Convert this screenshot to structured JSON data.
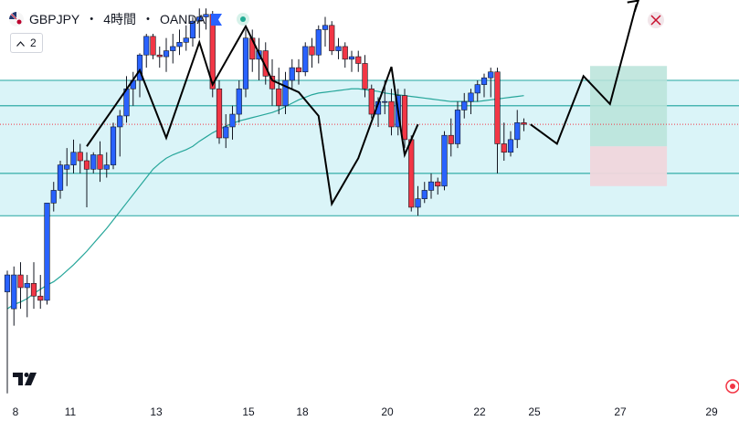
{
  "header": {
    "symbol": "GBPJPY",
    "separator1": "・",
    "timeframe": "4時間",
    "separator2": "・",
    "broker": "OANDA"
  },
  "indicator_toggle": {
    "label": "2"
  },
  "colors": {
    "up": "#2962ff",
    "down": "#f23645",
    "ma": "#26a69a",
    "zone_fill": "#cdf0f5",
    "zone_line": "#22a6a0",
    "target_fill": "#b9e3d9",
    "stop_fill": "#f0d6dc",
    "path": "#000000"
  },
  "icons": {
    "flag": "uk-japan-flag-icon",
    "bookmark": "bookmark-icon",
    "status": "market-status-icon",
    "logo": "tradingview-logo-icon",
    "alert": "alert-icon"
  },
  "x_axis": {
    "labels": [
      "8",
      "11",
      "13",
      "15",
      "18",
      "20",
      "22",
      "25",
      "27",
      "29"
    ]
  },
  "chart_data": {
    "type": "candlestick",
    "symbol": "GBPJPY",
    "timeframe": "4時間",
    "broker": "OANDA",
    "candles": [
      {
        "o": 60,
        "h": 85,
        "l": -60,
        "c": 80
      },
      {
        "o": 40,
        "h": 90,
        "l": 20,
        "c": 80
      },
      {
        "o": 80,
        "h": 95,
        "l": 40,
        "c": 65
      },
      {
        "o": 65,
        "h": 80,
        "l": 30,
        "c": 70
      },
      {
        "o": 70,
        "h": 95,
        "l": 40,
        "c": 55
      },
      {
        "o": 55,
        "h": 80,
        "l": 40,
        "c": 50
      },
      {
        "o": 50,
        "h": 165,
        "l": 45,
        "c": 165
      },
      {
        "o": 165,
        "h": 190,
        "l": 155,
        "c": 180
      },
      {
        "o": 180,
        "h": 215,
        "l": 170,
        "c": 210
      },
      {
        "o": 205,
        "h": 230,
        "l": 185,
        "c": 210
      },
      {
        "o": 210,
        "h": 240,
        "l": 200,
        "c": 225
      },
      {
        "o": 225,
        "h": 235,
        "l": 200,
        "c": 215
      },
      {
        "o": 215,
        "h": 225,
        "l": 160,
        "c": 205
      },
      {
        "o": 205,
        "h": 225,
        "l": 200,
        "c": 222
      },
      {
        "o": 222,
        "h": 238,
        "l": 190,
        "c": 205
      },
      {
        "o": 205,
        "h": 225,
        "l": 195,
        "c": 210
      },
      {
        "o": 210,
        "h": 260,
        "l": 205,
        "c": 255
      },
      {
        "o": 255,
        "h": 275,
        "l": 220,
        "c": 268
      },
      {
        "o": 268,
        "h": 315,
        "l": 260,
        "c": 300
      },
      {
        "o": 300,
        "h": 320,
        "l": 280,
        "c": 310
      },
      {
        "o": 310,
        "h": 342,
        "l": 290,
        "c": 340
      },
      {
        "o": 340,
        "h": 365,
        "l": 325,
        "c": 362
      },
      {
        "o": 362,
        "h": 365,
        "l": 335,
        "c": 340
      },
      {
        "o": 340,
        "h": 350,
        "l": 325,
        "c": 338
      },
      {
        "o": 338,
        "h": 360,
        "l": 320,
        "c": 345
      },
      {
        "o": 345,
        "h": 365,
        "l": 330,
        "c": 350
      },
      {
        "o": 350,
        "h": 370,
        "l": 340,
        "c": 355
      },
      {
        "o": 355,
        "h": 375,
        "l": 345,
        "c": 360
      },
      {
        "o": 360,
        "h": 385,
        "l": 350,
        "c": 380
      },
      {
        "o": 380,
        "h": 395,
        "l": 360,
        "c": 385
      },
      {
        "o": 385,
        "h": 395,
        "l": 370,
        "c": 388
      },
      {
        "o": 388,
        "h": 392,
        "l": 290,
        "c": 300
      },
      {
        "o": 300,
        "h": 310,
        "l": 235,
        "c": 242
      },
      {
        "o": 242,
        "h": 270,
        "l": 230,
        "c": 255
      },
      {
        "o": 255,
        "h": 280,
        "l": 240,
        "c": 270
      },
      {
        "o": 270,
        "h": 310,
        "l": 260,
        "c": 300
      },
      {
        "o": 300,
        "h": 370,
        "l": 290,
        "c": 360
      },
      {
        "o": 360,
        "h": 370,
        "l": 320,
        "c": 335
      },
      {
        "o": 335,
        "h": 360,
        "l": 310,
        "c": 345
      },
      {
        "o": 345,
        "h": 355,
        "l": 305,
        "c": 315
      },
      {
        "o": 315,
        "h": 335,
        "l": 280,
        "c": 300
      },
      {
        "o": 300,
        "h": 325,
        "l": 270,
        "c": 280
      },
      {
        "o": 280,
        "h": 320,
        "l": 270,
        "c": 310
      },
      {
        "o": 310,
        "h": 335,
        "l": 300,
        "c": 325
      },
      {
        "o": 325,
        "h": 335,
        "l": 305,
        "c": 320
      },
      {
        "o": 320,
        "h": 355,
        "l": 315,
        "c": 350
      },
      {
        "o": 350,
        "h": 360,
        "l": 325,
        "c": 340
      },
      {
        "o": 340,
        "h": 375,
        "l": 330,
        "c": 370
      },
      {
        "o": 370,
        "h": 385,
        "l": 350,
        "c": 375
      },
      {
        "o": 375,
        "h": 380,
        "l": 340,
        "c": 345
      },
      {
        "o": 345,
        "h": 360,
        "l": 335,
        "c": 350
      },
      {
        "o": 350,
        "h": 355,
        "l": 325,
        "c": 335
      },
      {
        "o": 335,
        "h": 345,
        "l": 320,
        "c": 338
      },
      {
        "o": 338,
        "h": 345,
        "l": 320,
        "c": 330
      },
      {
        "o": 330,
        "h": 340,
        "l": 290,
        "c": 300
      },
      {
        "o": 300,
        "h": 305,
        "l": 265,
        "c": 270
      },
      {
        "o": 270,
        "h": 290,
        "l": 255,
        "c": 285
      },
      {
        "o": 285,
        "h": 310,
        "l": 270,
        "c": 285
      },
      {
        "o": 285,
        "h": 300,
        "l": 245,
        "c": 255
      },
      {
        "o": 255,
        "h": 300,
        "l": 245,
        "c": 292
      },
      {
        "o": 292,
        "h": 300,
        "l": 230,
        "c": 240
      },
      {
        "o": 240,
        "h": 245,
        "l": 155,
        "c": 160
      },
      {
        "o": 160,
        "h": 185,
        "l": 150,
        "c": 170
      },
      {
        "o": 170,
        "h": 190,
        "l": 165,
        "c": 180
      },
      {
        "o": 180,
        "h": 200,
        "l": 170,
        "c": 190
      },
      {
        "o": 190,
        "h": 195,
        "l": 175,
        "c": 185
      },
      {
        "o": 185,
        "h": 250,
        "l": 180,
        "c": 245
      },
      {
        "o": 245,
        "h": 265,
        "l": 220,
        "c": 235
      },
      {
        "o": 235,
        "h": 285,
        "l": 230,
        "c": 275
      },
      {
        "o": 275,
        "h": 295,
        "l": 265,
        "c": 285
      },
      {
        "o": 285,
        "h": 300,
        "l": 270,
        "c": 295
      },
      {
        "o": 295,
        "h": 310,
        "l": 285,
        "c": 305
      },
      {
        "o": 305,
        "h": 318,
        "l": 290,
        "c": 313
      },
      {
        "o": 313,
        "h": 325,
        "l": 290,
        "c": 320
      },
      {
        "o": 320,
        "h": 325,
        "l": 200,
        "c": 235
      },
      {
        "o": 235,
        "h": 260,
        "l": 215,
        "c": 225
      },
      {
        "o": 225,
        "h": 250,
        "l": 220,
        "c": 240
      },
      {
        "o": 240,
        "h": 275,
        "l": 230,
        "c": 260
      },
      {
        "o": 260,
        "h": 265,
        "l": 250,
        "c": 258
      }
    ],
    "moving_average": [
      40,
      45,
      48,
      52,
      58,
      63,
      68,
      72,
      78,
      85,
      92,
      100,
      108,
      117,
      126,
      135,
      145,
      155,
      165,
      175,
      185,
      195,
      205,
      212,
      218,
      222,
      225,
      228,
      232,
      238,
      243,
      248,
      252,
      256,
      259,
      262,
      264,
      266,
      268,
      270,
      272,
      275,
      279,
      283,
      287,
      290,
      293,
      295,
      296,
      297,
      298,
      299,
      300,
      300,
      299,
      298,
      297,
      295,
      294,
      293,
      292,
      291,
      290,
      289,
      288,
      287,
      286,
      285,
      285,
      285,
      285,
      285,
      286,
      287,
      288,
      289,
      290,
      291,
      292
    ],
    "zones": [
      {
        "from": 200,
        "to": 280
      },
      {
        "from": 150,
        "to": 200
      },
      {
        "from": 280,
        "to": 310
      }
    ],
    "projection": {
      "path": [
        [
          79,
          258
        ],
        [
          83,
          235
        ],
        [
          87,
          315
        ],
        [
          91,
          282
        ],
        [
          95,
          400
        ]
      ],
      "target": {
        "from": 232,
        "to": 327
      },
      "stop": {
        "from": 185,
        "to": 232
      }
    },
    "zigzag": [
      [
        12,
        232
      ],
      [
        20,
        322
      ],
      [
        24,
        242
      ],
      [
        29,
        355
      ],
      [
        31,
        305
      ],
      [
        36,
        374
      ],
      [
        40,
        310
      ],
      [
        44,
        296
      ],
      [
        47,
        268
      ],
      [
        49,
        164
      ],
      [
        53,
        218
      ],
      [
        58,
        326
      ],
      [
        60,
        222
      ],
      [
        62,
        258
      ]
    ],
    "ylim": [
      -70,
      405
    ],
    "x_ticks": [
      "8",
      "11",
      "13",
      "15",
      "18",
      "20",
      "22",
      "25",
      "27",
      "29"
    ],
    "grid": false
  }
}
